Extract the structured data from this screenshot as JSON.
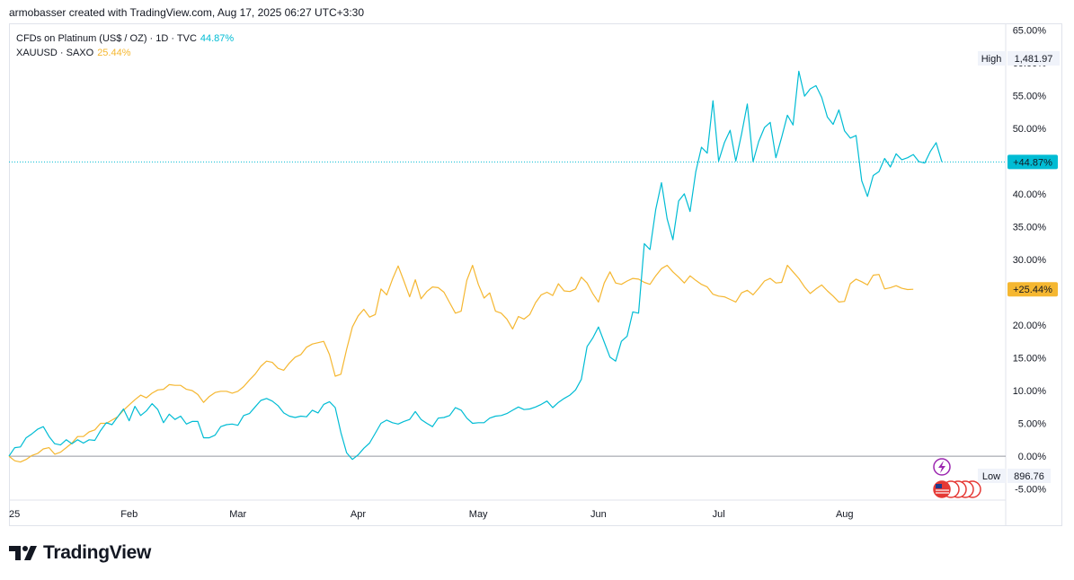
{
  "header": {
    "attribution": "armobasser created with TradingView.com, Aug 17, 2025 06:27 UTC+3:30"
  },
  "legend": {
    "series1_label": "CFDs on Platinum (US$ / OZ) · 1D · TVC",
    "series1_pct": "44.87%",
    "series2_label": "XAUUSD · SAXO",
    "series2_pct": "25.44%"
  },
  "branding": {
    "logo_text": "TradingView",
    "logo_icon": "tradingview-logo-icon"
  },
  "colors": {
    "platinum": "#00bcd4",
    "gold": "#f5b731",
    "zero_line": "#9598a1"
  },
  "chart_data": {
    "type": "line",
    "x_axis_labels": [
      "25",
      "Feb",
      "Mar",
      "Apr",
      "May",
      "Jun",
      "Jul",
      "Aug"
    ],
    "y_axis_labels": [
      "65.00%",
      "60.00%",
      "55.00%",
      "50.00%",
      "45.00%",
      "40.00%",
      "35.00%",
      "30.00%",
      "25.00%",
      "20.00%",
      "15.00%",
      "10.00%",
      "5.00%",
      "0.00%",
      "-5.00%"
    ],
    "ylim": [
      -6.7,
      66
    ],
    "grid": false,
    "series": [
      {
        "name": "CFDs on Platinum (US$ / OZ) · 1D · TVC",
        "last_label": "+44.87%",
        "values": [
          0,
          1.3,
          1.4,
          2.8,
          3.4,
          4.1,
          4.5,
          3.0,
          1.9,
          1.7,
          2.5,
          1.9,
          2.5,
          2.0,
          2.5,
          2.4,
          3.9,
          5.1,
          4.8,
          6.0,
          7.2,
          5.4,
          7.6,
          6.2,
          6.9,
          8.0,
          7.1,
          5.1,
          6.4,
          5.6,
          6.1,
          4.9,
          5.3,
          5.3,
          2.8,
          2.8,
          3.2,
          4.5,
          4.8,
          4.9,
          4.7,
          6.2,
          6.5,
          7.5,
          8.5,
          8.8,
          8.4,
          7.7,
          6.6,
          6.1,
          5.9,
          6.1,
          6.0,
          7.0,
          6.6,
          7.9,
          8.3,
          7.4,
          3.6,
          0.5,
          -0.5,
          0.2,
          1.2,
          2.0,
          3.5,
          5.0,
          5.5,
          5.1,
          4.9,
          5.3,
          5.6,
          6.8,
          5.6,
          5.0,
          4.5,
          5.8,
          5.9,
          6.2,
          7.4,
          7.0,
          5.8,
          5.0,
          5.1,
          5.1,
          5.8,
          6.1,
          6.2,
          6.5,
          7.0,
          7.5,
          7.1,
          7.2,
          7.5,
          7.9,
          8.4,
          7.4,
          8.2,
          8.8,
          9.3,
          10.1,
          11.7,
          16.7,
          18.0,
          19.7,
          17.4,
          15.1,
          14.5,
          17.5,
          18.3,
          22.0,
          21.8,
          32.4,
          31.5,
          37.6,
          41.7,
          36.2,
          33.0,
          38.9,
          40.0,
          37.3,
          43.4,
          47.1,
          46.2,
          54.2,
          45.0,
          47.8,
          49.7,
          45.0,
          49.1,
          53.7,
          44.9,
          48.0,
          50.1,
          50.9,
          45.5,
          48.6,
          52.0,
          50.5,
          58.7,
          54.9,
          56.0,
          56.5,
          54.7,
          51.7,
          50.6,
          52.8,
          49.6,
          48.5,
          48.9,
          42.0,
          39.6,
          42.8,
          43.4,
          45.4,
          44.1,
          46.1,
          45.2,
          45.5,
          46.0,
          44.9,
          44.7,
          46.5,
          47.8,
          44.87
        ]
      },
      {
        "name": "XAUUSD · SAXO",
        "last_label": "+25.44%",
        "values": [
          0,
          -0.7,
          -0.9,
          -0.5,
          0.1,
          0.4,
          1.1,
          1.3,
          0.3,
          0.6,
          1.3,
          2.0,
          3.0,
          3.0,
          3.7,
          4.0,
          5.0,
          5.0,
          5.5,
          6.0,
          7.0,
          7.8,
          8.6,
          9.3,
          8.9,
          9.6,
          10.1,
          10.2,
          10.9,
          10.8,
          10.8,
          10.2,
          10.0,
          9.4,
          8.2,
          9.1,
          9.7,
          9.9,
          9.9,
          9.6,
          9.9,
          10.6,
          11.6,
          12.5,
          13.7,
          14.5,
          14.3,
          13.4,
          13.1,
          14.2,
          15.1,
          15.5,
          16.6,
          17.1,
          17.3,
          17.5,
          15.5,
          12.2,
          12.5,
          16.3,
          19.7,
          21.4,
          22.4,
          21.2,
          21.6,
          25.5,
          24.6,
          27.0,
          29.0,
          26.7,
          24.3,
          26.9,
          24.0,
          25.1,
          25.8,
          25.7,
          25.0,
          23.4,
          21.8,
          22.1,
          26.8,
          29.1,
          26.2,
          24.1,
          24.9,
          22.1,
          21.8,
          20.9,
          19.4,
          21.3,
          20.9,
          21.6,
          23.4,
          24.6,
          25.0,
          24.5,
          26.3,
          25.2,
          25.1,
          25.5,
          27.3,
          26.4,
          24.8,
          23.5,
          26.4,
          28.1,
          26.4,
          26.2,
          26.7,
          27.1,
          27.0,
          26.5,
          26.2,
          27.5,
          28.6,
          29.1,
          28.1,
          27.3,
          26.4,
          27.5,
          26.8,
          26.2,
          25.8,
          24.7,
          24.4,
          24.3,
          23.9,
          23.5,
          24.9,
          25.3,
          24.6,
          25.6,
          26.7,
          27.1,
          26.4,
          26.5,
          29.1,
          28.1,
          27.1,
          25.8,
          24.8,
          25.5,
          26.1,
          25.2,
          24.4,
          23.5,
          23.6,
          26.3,
          27.0,
          26.6,
          26.1,
          27.6,
          27.7,
          25.5,
          25.7,
          26.0,
          25.6,
          25.4,
          25.44
        ]
      }
    ],
    "high_label": "High",
    "high_value": "1,481.97",
    "low_label": "Low",
    "low_value": "896.76"
  }
}
